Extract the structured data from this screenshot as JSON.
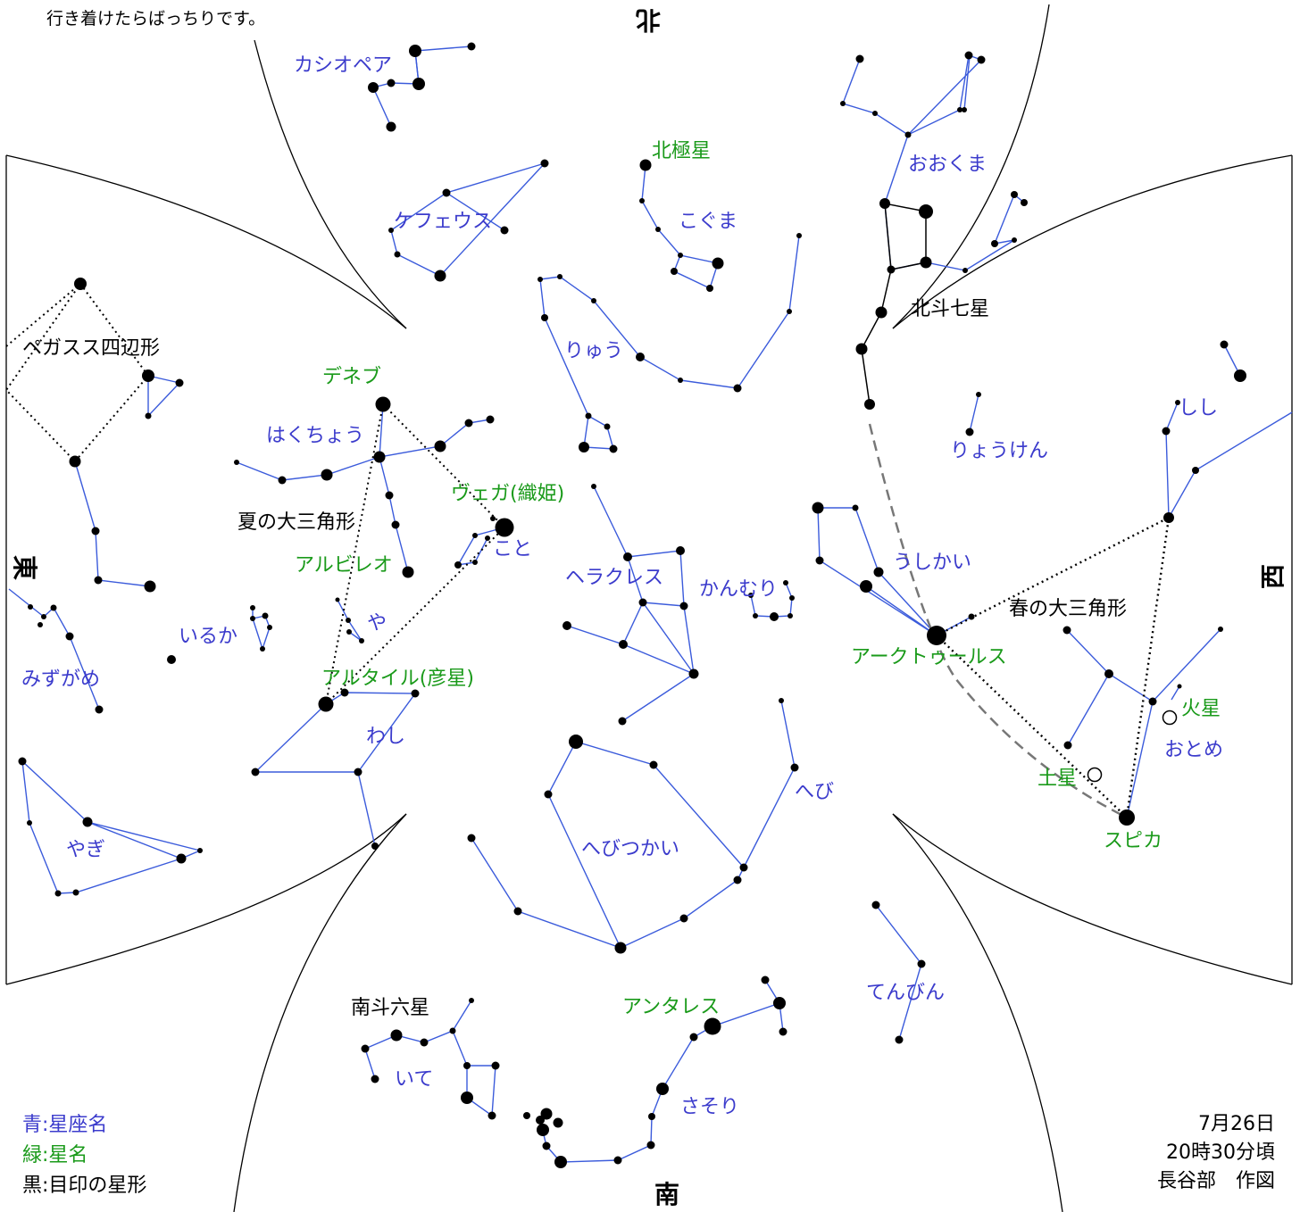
{
  "note": "行き着けたらばっちりです。",
  "directions": {
    "north": "北",
    "south": "南",
    "east": "東",
    "west": "西"
  },
  "constellations": {
    "cassiopeia": "カシオペア",
    "cepheus": "ケフェウス",
    "ursa_minor": "こぐま",
    "draco": "りゅう",
    "ursa_major": "おおくま",
    "canes_venatici": "りょうけん",
    "leo": "しし",
    "cygnus": "はくちょう",
    "lyra": "こと",
    "hercules": "ヘラクレス",
    "corona_borealis": "かんむり",
    "bootes": "うしかい",
    "delphinus": "いるか",
    "sagitta": "や",
    "aquarius": "みずがめ",
    "aquila": "わし",
    "virgo": "おとめ",
    "serpens": "へび",
    "ophiuchus": "へびつかい",
    "capricornus": "やぎ",
    "libra": "てんびん",
    "sagittarius": "いて",
    "scorpius": "さそり"
  },
  "stars": {
    "polaris": "北極星",
    "deneb": "デネブ",
    "vega": "ヴェガ(織姫)",
    "albireo": "アルビレオ",
    "altair": "アルタイル(彦星)",
    "arcturus": "アークトゥールス",
    "spica": "スピカ",
    "saturn": "土星",
    "mars": "火星",
    "antares": "アンタレス"
  },
  "asterisms": {
    "big_dipper": "北斗七星",
    "pegasus_square": "ペガスス四辺形",
    "summer_triangle": "夏の大三角形",
    "spring_triangle": "春の大三角形",
    "milk_dipper": "南斗六星"
  },
  "legend": {
    "blue": "青:星座名",
    "green": "緑:星名",
    "black": "黒:目印の星形"
  },
  "date": "7月26日",
  "time": "20時30分頃",
  "author": "長谷部　作図",
  "colors": {
    "constellation_line": "#3b5bdb",
    "constellation_label": "#3b3bcc",
    "star_label": "#1a9a1a",
    "asterism": "#000000",
    "arc": "#777777"
  }
}
